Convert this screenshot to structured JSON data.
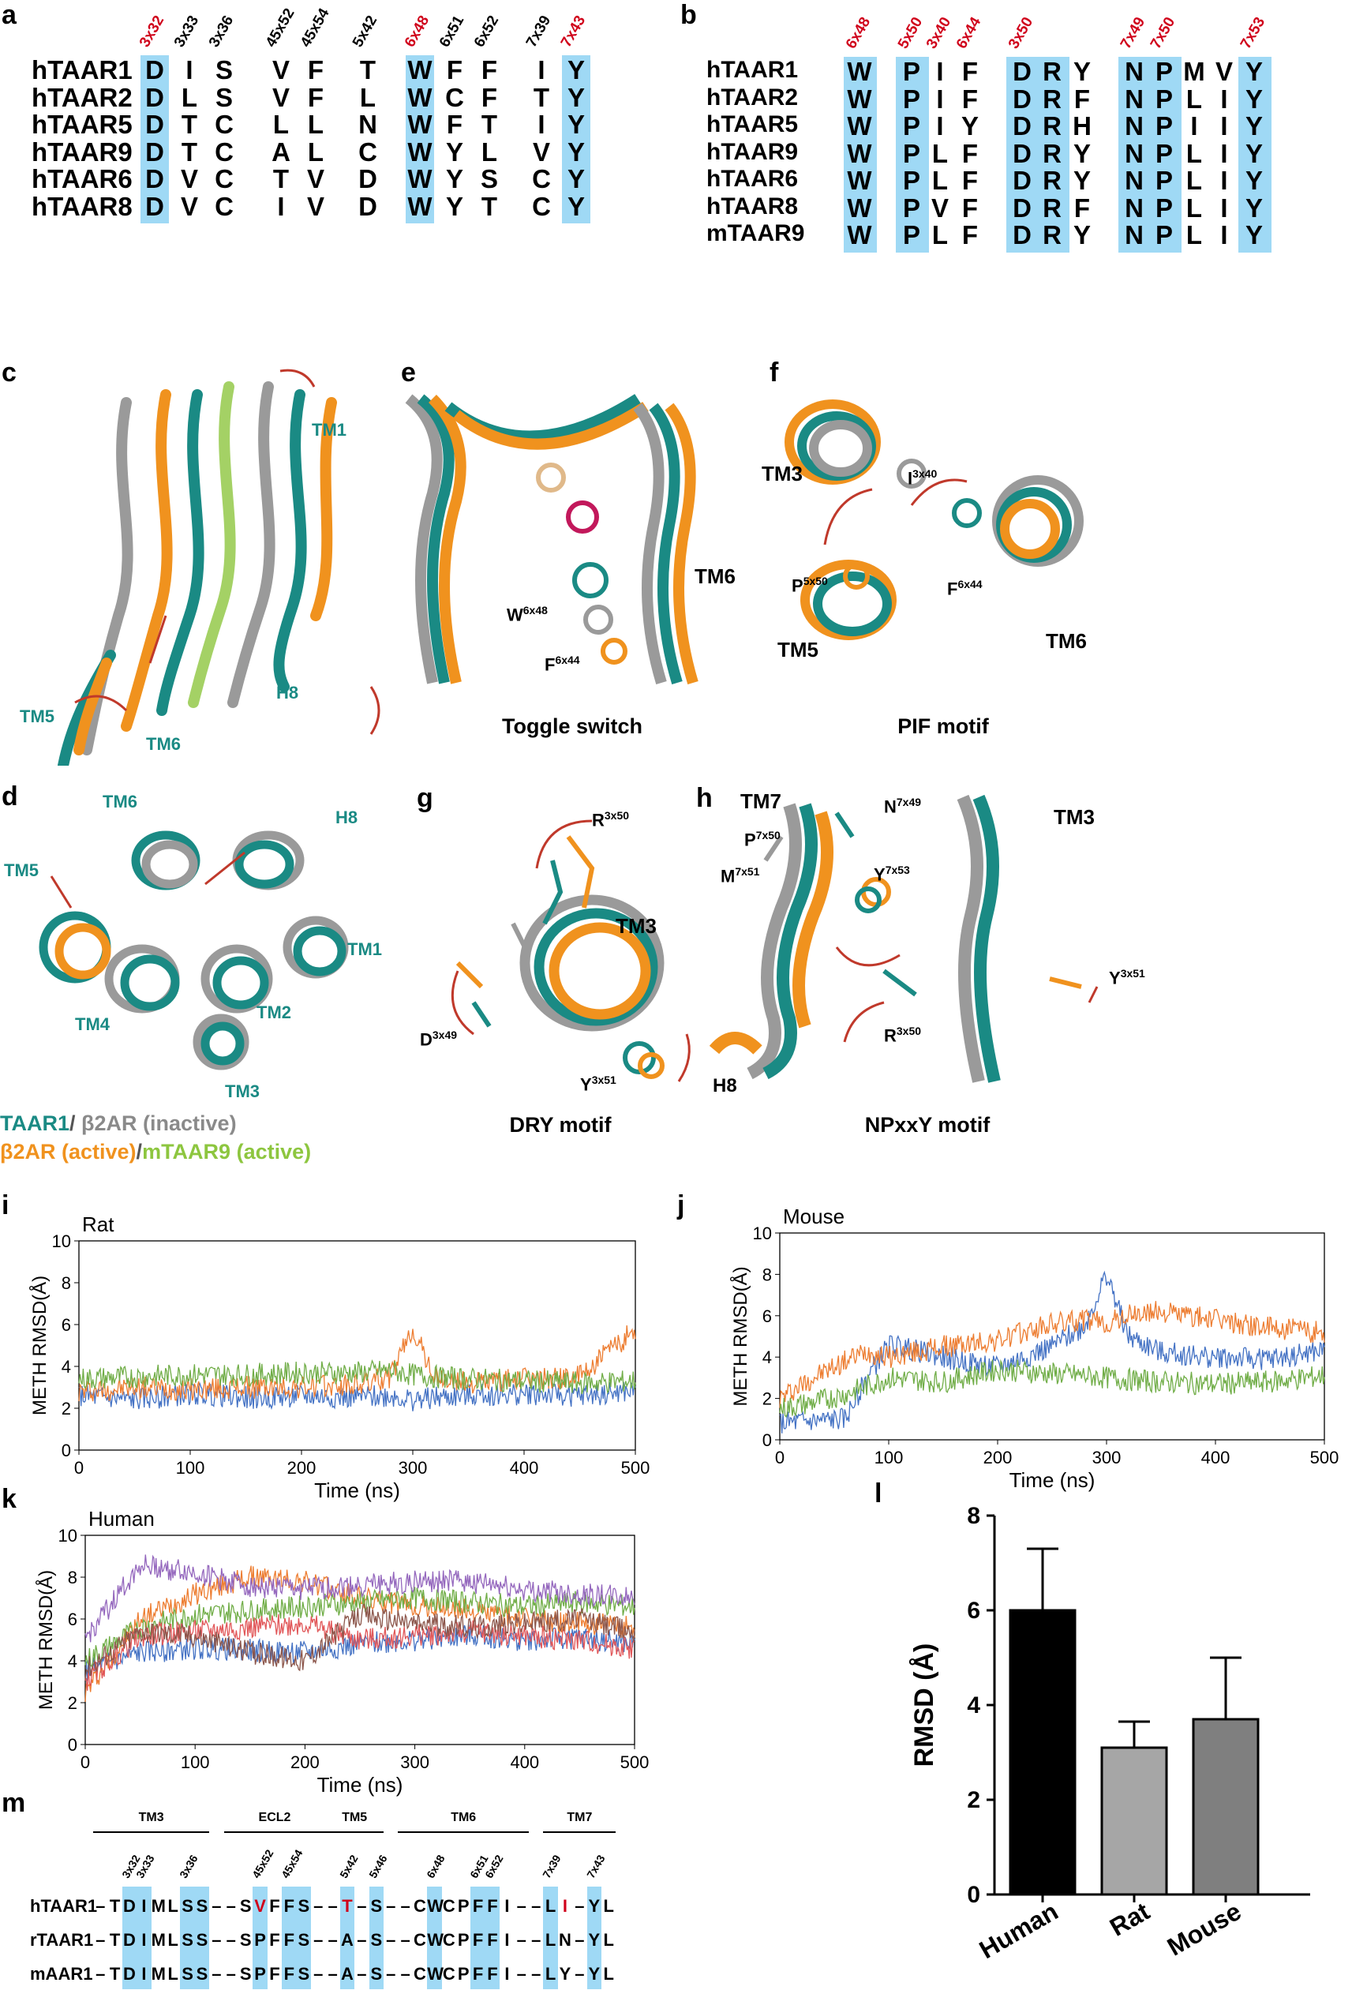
{
  "panels": {
    "a": "a",
    "b": "b",
    "c": "c",
    "d": "d",
    "e": "e",
    "f": "f",
    "g": "g",
    "h": "h",
    "i": "i",
    "j": "j",
    "k": "k",
    "l": "l",
    "m": "m"
  },
  "panel_a": {
    "positions": [
      {
        "label": "3x32",
        "red": true
      },
      {
        "label": "3x33",
        "red": false
      },
      {
        "label": "3x36",
        "red": false
      },
      {
        "label": "45x52",
        "red": false
      },
      {
        "label": "45x54",
        "red": false
      },
      {
        "label": "5x42",
        "red": false
      },
      {
        "label": "6x48",
        "red": true
      },
      {
        "label": "6x51",
        "red": false
      },
      {
        "label": "6x52",
        "red": false
      },
      {
        "label": "7x39",
        "red": false
      },
      {
        "label": "7x43",
        "red": true
      }
    ],
    "rows": [
      {
        "name": "hTAAR1",
        "res": [
          "D",
          "I",
          "S",
          "V",
          "F",
          "T",
          "W",
          "F",
          "F",
          "I",
          "Y"
        ]
      },
      {
        "name": "hTAAR2",
        "res": [
          "D",
          "L",
          "S",
          "V",
          "F",
          "L",
          "W",
          "C",
          "F",
          "T",
          "Y"
        ]
      },
      {
        "name": "hTAAR5",
        "res": [
          "D",
          "T",
          "C",
          "L",
          "L",
          "N",
          "W",
          "F",
          "T",
          "I",
          "Y"
        ]
      },
      {
        "name": "hTAAR9",
        "res": [
          "D",
          "T",
          "C",
          "A",
          "L",
          "C",
          "W",
          "Y",
          "L",
          "V",
          "Y"
        ]
      },
      {
        "name": "hTAAR6",
        "res": [
          "D",
          "V",
          "C",
          "T",
          "V",
          "D",
          "W",
          "Y",
          "S",
          "C",
          "Y"
        ]
      },
      {
        "name": "hTAAR8",
        "res": [
          "D",
          "V",
          "C",
          "I",
          "V",
          "D",
          "W",
          "Y",
          "T",
          "C",
          "Y"
        ]
      }
    ]
  },
  "panel_b": {
    "positions": [
      {
        "label": "6x48",
        "col": 0
      },
      {
        "label": "5x50",
        "col": 1
      },
      {
        "label": "3x40",
        "col": 2
      },
      {
        "label": "6x44",
        "col": 3
      },
      {
        "label": "3x50",
        "col": 4
      },
      {
        "label": "7x49",
        "col": 7
      },
      {
        "label": "7x50",
        "col": 8
      },
      {
        "label": "7x53",
        "col": 11
      }
    ],
    "rows": [
      {
        "name": "hTAAR1",
        "res": [
          "W",
          "P",
          "I",
          "F",
          "D",
          "R",
          "Y",
          "N",
          "P",
          "M",
          "V",
          "Y"
        ]
      },
      {
        "name": "hTAAR2",
        "res": [
          "W",
          "P",
          "I",
          "F",
          "D",
          "R",
          "F",
          "N",
          "P",
          "L",
          "I",
          "Y"
        ]
      },
      {
        "name": "hTAAR5",
        "res": [
          "W",
          "P",
          "I",
          "Y",
          "D",
          "R",
          "H",
          "N",
          "P",
          "I",
          "I",
          "Y"
        ]
      },
      {
        "name": "hTAAR9",
        "res": [
          "W",
          "P",
          "L",
          "F",
          "D",
          "R",
          "Y",
          "N",
          "P",
          "L",
          "I",
          "Y"
        ]
      },
      {
        "name": "hTAAR6",
        "res": [
          "W",
          "P",
          "L",
          "F",
          "D",
          "R",
          "Y",
          "N",
          "P",
          "L",
          "I",
          "Y"
        ]
      },
      {
        "name": "hTAAR8",
        "res": [
          "W",
          "P",
          "V",
          "F",
          "D",
          "R",
          "F",
          "N",
          "P",
          "L",
          "I",
          "Y"
        ]
      },
      {
        "name": "mTAAR9",
        "res": [
          "W",
          "P",
          "L",
          "F",
          "D",
          "R",
          "Y",
          "N",
          "P",
          "L",
          "I",
          "Y"
        ]
      }
    ]
  },
  "structure_labels": {
    "c": {
      "tm1": "TM1",
      "tm5": "TM5",
      "tm6": "TM6",
      "h8": "H8"
    },
    "d": {
      "tm6": "TM6",
      "h8": "H8",
      "tm5": "TM5",
      "tm1": "TM1",
      "tm4": "TM4",
      "tm2": "TM2",
      "tm3": "TM3"
    },
    "e": {
      "tm6": "TM6",
      "w": "W",
      "w_sup": "6x48",
      "f": "F",
      "f_sup": "6x44",
      "caption": "Toggle switch"
    },
    "f": {
      "tm3": "TM3",
      "i": "I",
      "i_sup": "3x40",
      "p": "P",
      "p_sup": "5x50",
      "f": "F",
      "f_sup": "6x44",
      "tm5": "TM5",
      "tm6": "TM6",
      "caption": "PIF motif"
    },
    "g": {
      "r": "R",
      "r_sup": "3x50",
      "tm3": "TM3",
      "d": "D",
      "d_sup": "3x49",
      "y": "Y",
      "y_sup": "3x51",
      "caption": "DRY motif"
    },
    "h": {
      "tm7": "TM7",
      "n": "N",
      "n_sup": "7x49",
      "p": "P",
      "p_sup": "7x50",
      "tm3": "TM3",
      "m": "M",
      "m_sup": "7x51",
      "y": "Y",
      "y_sup": "7x53",
      "y2": "Y",
      "y2_sup": "3x51",
      "r": "R",
      "r_sup": "3x50",
      "h8": "H8",
      "caption": "NPxxY motif"
    }
  },
  "legend": {
    "line1_a": "TAAR1",
    "line1_sep": "/ ",
    "line1_b": "β2AR (inactive)",
    "line2_a": "β2AR (active)",
    "line2_sep": "/",
    "line2_b": "mTAAR9 (active)",
    "colors": {
      "taar1": "#1a8a84",
      "b2ar_inactive": "#8a8a8a",
      "b2ar_active": "#f0921e",
      "mtaar9": "#8dc63f"
    }
  },
  "chart_data": [
    {
      "id": "i",
      "type": "line",
      "title": "Rat",
      "xlabel": "Time (ns)",
      "ylabel": "METH RMSD(Å)",
      "xlim": [
        0,
        500
      ],
      "ylim": [
        0,
        10
      ],
      "xticks": [
        "0",
        "100",
        "200",
        "300",
        "400",
        "500"
      ],
      "yticks": [
        "0",
        "2",
        "4",
        "6",
        "8",
        "10"
      ],
      "series": [
        {
          "color": "#4472c4",
          "x": [
            0,
            50,
            100,
            150,
            200,
            250,
            280,
            300,
            320,
            350,
            400,
            450,
            500
          ],
          "values": [
            2.6,
            2.4,
            2.7,
            2.5,
            2.6,
            2.5,
            2.6,
            2.4,
            2.5,
            2.6,
            2.7,
            2.6,
            2.8
          ]
        },
        {
          "color": "#ed7d31",
          "x": [
            0,
            50,
            100,
            150,
            200,
            250,
            280,
            300,
            320,
            350,
            400,
            450,
            500
          ],
          "values": [
            2.8,
            3.0,
            2.9,
            3.0,
            3.0,
            3.1,
            3.5,
            5.8,
            3.4,
            3.2,
            3.4,
            3.5,
            5.8
          ]
        },
        {
          "color": "#70ad47",
          "x": [
            0,
            50,
            100,
            150,
            200,
            250,
            280,
            300,
            320,
            350,
            400,
            450,
            500
          ],
          "values": [
            3.4,
            3.5,
            3.6,
            3.6,
            3.7,
            3.7,
            3.8,
            3.6,
            3.5,
            3.4,
            3.3,
            3.2,
            3.3
          ]
        }
      ]
    },
    {
      "id": "j",
      "type": "line",
      "title": "Mouse",
      "xlabel": "Time (ns)",
      "ylabel": "METH RMSD(Å)",
      "xlim": [
        0,
        500
      ],
      "ylim": [
        0,
        10
      ],
      "xticks": [
        "0",
        "100",
        "200",
        "300",
        "400",
        "500"
      ],
      "yticks": [
        "0",
        "2",
        "4",
        "6",
        "8",
        "10"
      ],
      "series": [
        {
          "color": "#4472c4",
          "x": [
            0,
            30,
            60,
            80,
            100,
            150,
            200,
            250,
            280,
            300,
            320,
            350,
            400,
            450,
            500
          ],
          "values": [
            0.8,
            0.9,
            1.0,
            3.0,
            4.6,
            4.0,
            3.5,
            4.5,
            5.5,
            8.0,
            5.0,
            4.2,
            4.0,
            3.9,
            4.3
          ]
        },
        {
          "color": "#ed7d31",
          "x": [
            0,
            30,
            60,
            80,
            100,
            150,
            200,
            250,
            280,
            300,
            320,
            350,
            400,
            450,
            500
          ],
          "values": [
            2.0,
            3.0,
            3.8,
            4.3,
            4.0,
            4.5,
            4.8,
            5.6,
            5.8,
            5.6,
            6.0,
            6.2,
            5.8,
            5.4,
            5.2
          ]
        },
        {
          "color": "#70ad47",
          "x": [
            0,
            30,
            60,
            80,
            100,
            150,
            200,
            250,
            280,
            300,
            320,
            350,
            400,
            450,
            500
          ],
          "values": [
            1.5,
            1.8,
            2.2,
            2.6,
            3.0,
            2.8,
            3.4,
            3.2,
            3.1,
            3.0,
            2.9,
            2.8,
            2.7,
            2.8,
            3.1
          ]
        }
      ]
    },
    {
      "id": "k",
      "type": "line",
      "title": "Human",
      "xlabel": "Time (ns)",
      "ylabel": "METH RMSD(Å)",
      "xlim": [
        0,
        500
      ],
      "ylim": [
        0,
        10
      ],
      "xticks": [
        "0",
        "100",
        "200",
        "300",
        "400",
        "500"
      ],
      "yticks": [
        "0",
        "2",
        "4",
        "6",
        "8",
        "10"
      ],
      "series": [
        {
          "color": "#4472c4",
          "x": [
            0,
            50,
            100,
            150,
            200,
            250,
            300,
            350,
            400,
            450,
            500
          ],
          "values": [
            3.5,
            4.4,
            4.6,
            4.5,
            4.4,
            4.8,
            5.0,
            5.2,
            5.0,
            5.1,
            4.8
          ]
        },
        {
          "color": "#ed7d31",
          "x": [
            0,
            50,
            100,
            150,
            200,
            250,
            300,
            350,
            400,
            450,
            500
          ],
          "values": [
            2.5,
            6.0,
            7.2,
            8.0,
            7.8,
            7.0,
            6.6,
            6.4,
            6.0,
            5.8,
            5.6
          ]
        },
        {
          "color": "#70ad47",
          "x": [
            0,
            50,
            100,
            150,
            200,
            250,
            300,
            350,
            400,
            450,
            500
          ],
          "values": [
            4.0,
            5.6,
            6.2,
            6.4,
            6.6,
            6.8,
            7.0,
            6.8,
            6.6,
            6.8,
            6.6
          ]
        },
        {
          "color": "#e15759",
          "x": [
            0,
            50,
            100,
            150,
            200,
            250,
            300,
            350,
            400,
            450,
            500
          ],
          "values": [
            3.0,
            5.2,
            5.4,
            5.6,
            5.8,
            5.0,
            5.2,
            5.4,
            5.2,
            5.0,
            4.6
          ]
        },
        {
          "color": "#9467bd",
          "x": [
            0,
            50,
            100,
            150,
            200,
            250,
            300,
            350,
            400,
            450,
            500
          ],
          "values": [
            5.0,
            8.6,
            8.2,
            7.6,
            7.4,
            7.6,
            7.8,
            7.8,
            7.4,
            7.2,
            7.0
          ]
        },
        {
          "color": "#8c564b",
          "x": [
            0,
            50,
            100,
            150,
            200,
            250,
            300,
            350,
            400,
            450,
            500
          ],
          "values": [
            3.6,
            5.4,
            5.2,
            4.4,
            4.0,
            6.2,
            5.8,
            5.6,
            5.8,
            6.0,
            5.4
          ]
        }
      ]
    },
    {
      "id": "l",
      "type": "bar",
      "categories": [
        "Human",
        "Rat",
        "Mouse"
      ],
      "values": [
        6.0,
        3.1,
        3.7
      ],
      "errors": [
        1.3,
        0.55,
        1.3
      ],
      "colors": [
        "#000000",
        "#a6a6a6",
        "#7f7f7f"
      ],
      "ylabel": "RMSD (Å)",
      "ylim": [
        0,
        8
      ],
      "yticks": [
        "0",
        "2",
        "4",
        "6",
        "8"
      ]
    }
  ],
  "panel_m": {
    "regions": [
      {
        "label": "TM3"
      },
      {
        "label": "ECL2"
      },
      {
        "label": "TM5"
      },
      {
        "label": "TM6"
      },
      {
        "label": "TM7"
      }
    ],
    "positions": [
      "3x32",
      "3x33",
      "3x36",
      "45x52",
      "45x54",
      "5x42",
      "5x46",
      "6x48",
      "6x51",
      "6x52",
      "7x39",
      "7x43"
    ],
    "rows": [
      {
        "name": "hTAAR1",
        "seq": "–TDIMLSS––SVFFS––T–S––CWCPFFI––LI–YL"
      },
      {
        "name": "rTAAR1",
        "seq": "–TDIMLSS––SPFFS––A–S––CWCPFFI––LN–YL"
      },
      {
        "name": "mAAR1",
        "seq": "–TDIMLSS––SPFFS––A–S––CWCPFFI––LY–YL"
      }
    ]
  }
}
